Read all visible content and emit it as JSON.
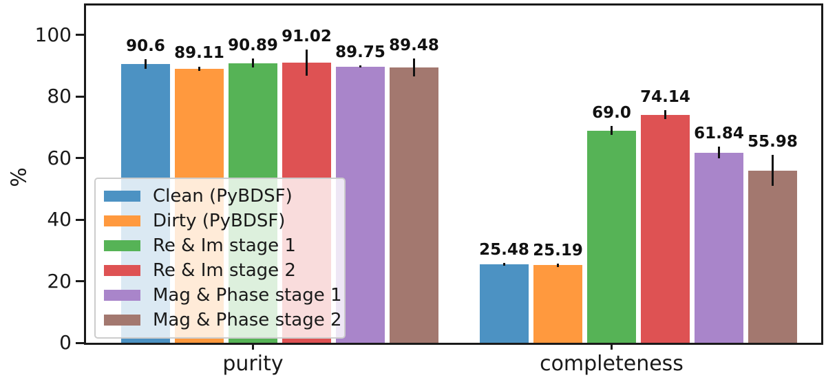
{
  "chart_data": {
    "type": "bar",
    "title": "",
    "xlabel": "",
    "ylabel": "%",
    "categories": [
      "purity",
      "completeness"
    ],
    "yticks": [
      0,
      20,
      40,
      60,
      80,
      100
    ],
    "ylim": [
      0,
      109.6
    ],
    "grid": false,
    "legend_position": "lower left",
    "error_color": "#111111",
    "spine_color": "#1a1a1a",
    "series": [
      {
        "name": "Clean (PyBDSF)",
        "color": "#4c92c3",
        "values": [
          90.6,
          25.48
        ],
        "errors": [
          1.5,
          0.5
        ],
        "value_labels": [
          "90.6",
          "25.48"
        ]
      },
      {
        "name": "Dirty (PyBDSF)",
        "color": "#ff993e",
        "values": [
          89.11,
          25.19
        ],
        "errors": [
          0.7,
          0.5
        ],
        "value_labels": [
          "89.11",
          "25.19"
        ]
      },
      {
        "name": "Re & Im stage 1",
        "color": "#56b356",
        "values": [
          90.89,
          69.0
        ],
        "errors": [
          1.4,
          1.5
        ],
        "value_labels": [
          "90.89",
          "69.0"
        ]
      },
      {
        "name": "Re & Im stage 2",
        "color": "#de5253",
        "values": [
          91.02,
          74.14
        ],
        "errors": [
          4.2,
          1.5
        ],
        "value_labels": [
          "91.02",
          "74.14"
        ]
      },
      {
        "name": "Mag & Phase stage 1",
        "color": "#a985ca",
        "values": [
          89.75,
          61.84
        ],
        "errors": [
          0.3,
          1.8
        ],
        "value_labels": [
          "89.75",
          "61.84"
        ]
      },
      {
        "name": "Mag & Phase stage 2",
        "color": "#a3786f",
        "values": [
          89.48,
          55.98
        ],
        "errors": [
          2.9,
          5.0
        ],
        "value_labels": [
          "89.48",
          "55.98"
        ]
      }
    ]
  }
}
